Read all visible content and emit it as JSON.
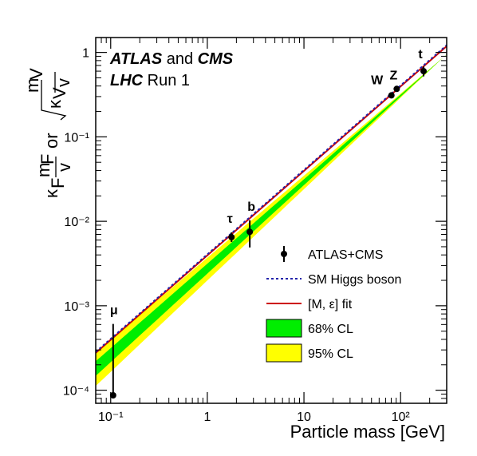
{
  "chart_data": {
    "type": "scatter",
    "title_lines": [
      {
        "parts": [
          {
            "text": "ATLAS",
            "style": "bold-italic"
          },
          {
            "text": " and ",
            "style": "normal"
          },
          {
            "text": "CMS",
            "style": "bold-italic"
          }
        ]
      },
      {
        "parts": [
          {
            "text": "LHC",
            "style": "bold-italic"
          },
          {
            "text": " Run 1",
            "style": "normal"
          }
        ]
      }
    ],
    "xlabel": "Particle mass [GeV]",
    "ylabel": {
      "kappa_f": "κ",
      "kappa_f_sub": "F",
      "mf": "m",
      "mf_sub": "F",
      "v": "v",
      "or": "or",
      "kappa_v": "κ",
      "kappa_v_sub": "V",
      "mv": "m",
      "mv_sub": "V"
    },
    "xscale": "log",
    "yscale": "log",
    "xlim": [
      0.07,
      300
    ],
    "ylim": [
      7e-05,
      1.5
    ],
    "xticks": [
      {
        "value": 0.1,
        "label": "10⁻¹"
      },
      {
        "value": 1,
        "label": "1"
      },
      {
        "value": 10,
        "label": "10"
      },
      {
        "value": 100,
        "label": "10²"
      }
    ],
    "yticks": [
      {
        "value": 0.0001,
        "label": "10⁻⁴"
      },
      {
        "value": 0.001,
        "label": "10⁻³"
      },
      {
        "value": 0.01,
        "label": "10⁻²"
      },
      {
        "value": 0.1,
        "label": "10⁻¹"
      },
      {
        "value": 1,
        "label": "1"
      }
    ],
    "points": [
      {
        "label": "μ",
        "x": 0.106,
        "y": 8.7e-05,
        "y_low": 8e-05,
        "y_high": 0.00061
      },
      {
        "label": "τ",
        "x": 1.78,
        "y": 0.0065,
        "y_low": 0.0057,
        "y_high": 0.0074
      },
      {
        "label": "b",
        "x": 2.75,
        "y": 0.0075,
        "y_low": 0.0049,
        "y_high": 0.0103
      },
      {
        "label": "W",
        "x": 80.4,
        "y": 0.31,
        "y_low": 0.29,
        "y_high": 0.33
      },
      {
        "label": "Z",
        "x": 91.2,
        "y": 0.37,
        "y_low": 0.35,
        "y_high": 0.39
      },
      {
        "label": "t",
        "x": 173,
        "y": 0.6,
        "y_low": 0.52,
        "y_high": 0.68
      }
    ],
    "sm_line": {
      "slope": 0.00406,
      "color": "#2222aa"
    },
    "fit_line": {
      "slope": 0.00395,
      "color": "#cc0000"
    },
    "band68": {
      "low": [
        0.000215,
        0.3
      ],
      "high": [
        0.000315,
        0.315
      ],
      "color": "#00ee00"
    },
    "band95": {
      "low": [
        0.000165,
        0.29
      ],
      "high": [
        0.000395,
        0.325
      ],
      "color": "#ffff00"
    },
    "legend": {
      "placement": "bottom-right",
      "entries": [
        {
          "kind": "marker",
          "label": "ATLAS+CMS"
        },
        {
          "kind": "dashed",
          "label": "SM Higgs boson",
          "color": "#2222aa"
        },
        {
          "kind": "line",
          "label": "[M, ε] fit",
          "color": "#cc0000"
        },
        {
          "kind": "box",
          "label": "68% CL",
          "color": "#00ee00"
        },
        {
          "kind": "box",
          "label": "95% CL",
          "color": "#ffff00"
        }
      ]
    }
  }
}
